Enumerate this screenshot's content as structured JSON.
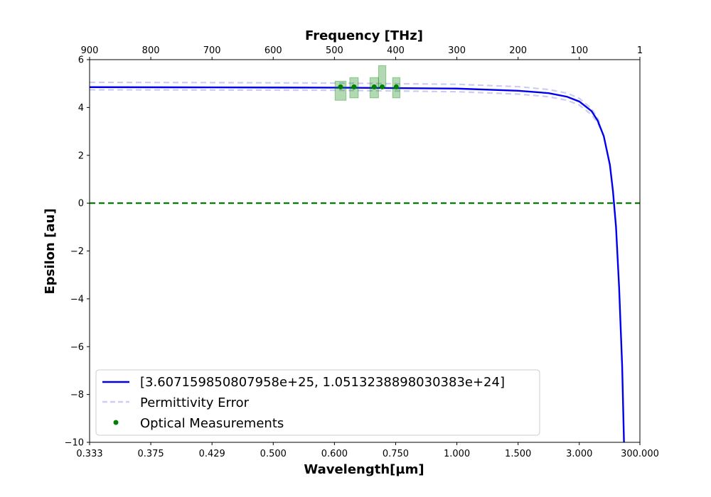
{
  "chart_data": {
    "type": "line",
    "xlabel": "Wavelength[µm]",
    "ylabel": "Epsilon [au]",
    "top_xlabel": "Frequency [THz]",
    "ylim": [
      -10,
      6
    ],
    "y_ticks": [
      "−10",
      "−8",
      "−6",
      "−4",
      "−2",
      "0",
      "2",
      "4",
      "6"
    ],
    "y_tick_values": [
      -10,
      -8,
      -6,
      -4,
      -2,
      0,
      2,
      4,
      6
    ],
    "bottom_x_tick_labels": [
      "0.333",
      "0.375",
      "0.429",
      "0.500",
      "0.600",
      "0.750",
      "1.000",
      "1.500",
      "3.000",
      "300.000"
    ],
    "top_x_tick_labels": [
      "900",
      "800",
      "700",
      "600",
      "500",
      "400",
      "300",
      "200",
      "100",
      "1"
    ],
    "frequency_ticks_thz": [
      900,
      800,
      700,
      600,
      500,
      400,
      300,
      200,
      100,
      1
    ],
    "x_axis": "frequency-linear (wavelength labels on bottom, frequency on top)",
    "grid": false,
    "legend_position": "lower-left",
    "series": [
      {
        "name": "[3.607159850807958e+25, 1.0513238898030383e+24]",
        "style": "solid",
        "color": "#0000ee",
        "points": [
          {
            "freq_thz": 900,
            "epsilon": 4.85
          },
          {
            "freq_thz": 700,
            "epsilon": 4.84
          },
          {
            "freq_thz": 500,
            "epsilon": 4.83
          },
          {
            "freq_thz": 300,
            "epsilon": 4.79
          },
          {
            "freq_thz": 200,
            "epsilon": 4.7
          },
          {
            "freq_thz": 150,
            "epsilon": 4.6
          },
          {
            "freq_thz": 120,
            "epsilon": 4.45
          },
          {
            "freq_thz": 100,
            "epsilon": 4.25
          },
          {
            "freq_thz": 80,
            "epsilon": 3.85
          },
          {
            "freq_thz": 70,
            "epsilon": 3.45
          },
          {
            "freq_thz": 60,
            "epsilon": 2.8
          },
          {
            "freq_thz": 50,
            "epsilon": 1.6
          },
          {
            "freq_thz": 45,
            "epsilon": 0.5
          },
          {
            "freq_thz": 40,
            "epsilon": -1.0
          },
          {
            "freq_thz": 35,
            "epsilon": -3.5
          },
          {
            "freq_thz": 30,
            "epsilon": -6.8
          },
          {
            "freq_thz": 27,
            "epsilon": -10
          }
        ]
      },
      {
        "name": "Permittivity Error",
        "style": "dashed",
        "color": "#ccccf5",
        "upper": [
          {
            "freq_thz": 900,
            "epsilon": 5.05
          },
          {
            "freq_thz": 700,
            "epsilon": 5.04
          },
          {
            "freq_thz": 500,
            "epsilon": 5.02
          },
          {
            "freq_thz": 300,
            "epsilon": 4.97
          },
          {
            "freq_thz": 200,
            "epsilon": 4.87
          },
          {
            "freq_thz": 150,
            "epsilon": 4.75
          },
          {
            "freq_thz": 120,
            "epsilon": 4.6
          },
          {
            "freq_thz": 100,
            "epsilon": 4.38
          },
          {
            "freq_thz": 80,
            "epsilon": 3.95
          },
          {
            "freq_thz": 70,
            "epsilon": 3.55
          },
          {
            "freq_thz": 65,
            "epsilon": 3.25
          }
        ],
        "lower": [
          {
            "freq_thz": 900,
            "epsilon": 4.74
          },
          {
            "freq_thz": 700,
            "epsilon": 4.73
          },
          {
            "freq_thz": 500,
            "epsilon": 4.72
          },
          {
            "freq_thz": 300,
            "epsilon": 4.66
          },
          {
            "freq_thz": 200,
            "epsilon": 4.56
          },
          {
            "freq_thz": 150,
            "epsilon": 4.45
          },
          {
            "freq_thz": 120,
            "epsilon": 4.3
          },
          {
            "freq_thz": 100,
            "epsilon": 4.1
          },
          {
            "freq_thz": 80,
            "epsilon": 3.7
          },
          {
            "freq_thz": 70,
            "epsilon": 3.35
          },
          {
            "freq_thz": 65,
            "epsilon": 3.1
          }
        ]
      },
      {
        "name": "Optical Measurements",
        "style": "markers",
        "color": "#008000",
        "points": [
          {
            "freq_thz": 490,
            "epsilon": 4.86,
            "x_err_thz": 9,
            "y_low": 4.3,
            "y_high": 5.1
          },
          {
            "freq_thz": 468,
            "epsilon": 4.86,
            "x_err_thz": 7,
            "y_low": 4.4,
            "y_high": 5.25
          },
          {
            "freq_thz": 435,
            "epsilon": 4.86,
            "x_err_thz": 7,
            "y_low": 4.4,
            "y_high": 5.25
          },
          {
            "freq_thz": 422,
            "epsilon": 4.86,
            "x_err_thz": 6,
            "y_low": 4.85,
            "y_high": 5.75
          },
          {
            "freq_thz": 399,
            "epsilon": 4.86,
            "x_err_thz": 6,
            "y_low": 4.4,
            "y_high": 5.25
          }
        ]
      },
      {
        "name": "zero line",
        "style": "dashed",
        "color": "#008000",
        "y": 0
      }
    ]
  }
}
